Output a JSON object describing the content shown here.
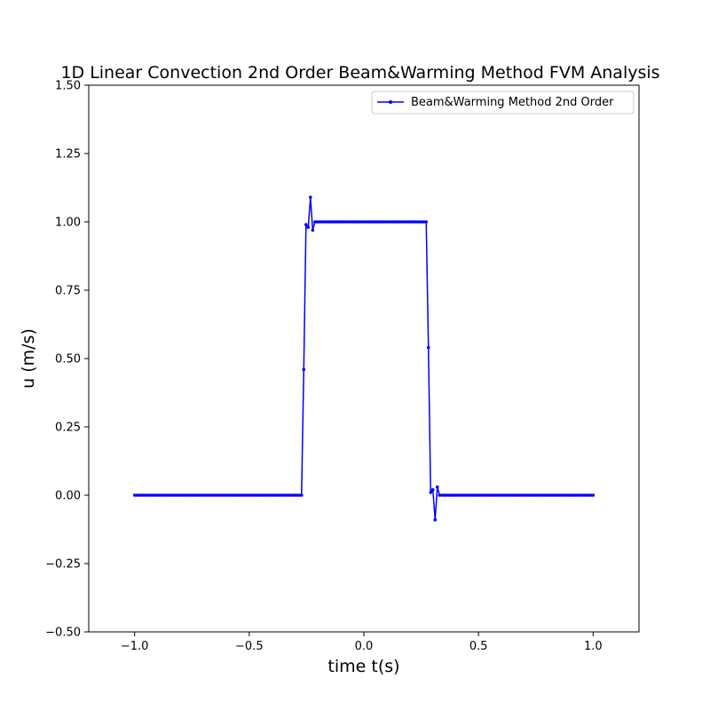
{
  "chart_data": {
    "type": "line",
    "title": "1D Linear Convection 2nd Order Beam&Warming Method FVM Analysis",
    "xlabel": "time t(s)",
    "ylabel": "u (m/s)",
    "xlim": [
      -1.2,
      1.2
    ],
    "ylim": [
      -0.5,
      1.5
    ],
    "x_ticks": [
      -1.0,
      -0.5,
      0.0,
      0.5,
      1.0
    ],
    "x_tick_labels": [
      "−1.0",
      "−0.5",
      "0.0",
      "0.5",
      "1.0"
    ],
    "y_ticks": [
      -0.5,
      -0.25,
      0.0,
      0.25,
      0.5,
      0.75,
      1.0,
      1.25,
      1.5
    ],
    "y_tick_labels": [
      "−0.50",
      "−0.25",
      "0.00",
      "0.25",
      "0.50",
      "0.75",
      "1.00",
      "1.25",
      "1.50"
    ],
    "grid": false,
    "legend_position": "top-right",
    "series": [
      {
        "name": "Beam&Warming Method 2nd Order",
        "color": "#0000ff",
        "x_start": -1.0,
        "x_end": 1.0,
        "n_points": 201,
        "values": [
          0,
          0,
          0,
          0,
          0,
          0,
          0,
          0,
          0,
          0,
          0,
          0,
          0,
          0,
          0,
          0,
          0,
          0,
          0,
          0,
          0,
          0,
          0,
          0,
          0,
          0,
          0,
          0,
          0,
          0,
          0,
          0,
          0,
          0,
          0,
          0,
          0,
          0,
          0,
          0,
          0,
          0,
          0,
          0,
          0,
          0,
          0,
          0,
          0,
          0,
          0,
          0,
          0,
          0,
          0,
          0,
          0,
          0,
          0,
          0,
          0,
          0,
          0,
          0,
          0,
          0,
          0,
          0,
          0,
          0,
          0,
          0,
          0,
          0,
          0,
          0,
          0.46,
          0.99,
          0.98,
          1.09,
          0.97,
          1.0,
          1.0,
          1.0,
          1.0,
          1.0,
          1.0,
          1.0,
          1.0,
          1.0,
          1.0,
          1.0,
          1.0,
          1.0,
          1.0,
          1.0,
          1.0,
          1.0,
          1.0,
          1.0,
          1.0,
          1.0,
          1.0,
          1.0,
          1.0,
          1.0,
          1.0,
          1.0,
          1.0,
          1.0,
          1.0,
          1.0,
          1.0,
          1.0,
          1.0,
          1.0,
          1.0,
          1.0,
          1.0,
          1.0,
          1.0,
          1.0,
          1.0,
          1.0,
          1.0,
          1.0,
          1.0,
          1.0,
          1.0,
          1.0,
          1.0,
          1.0,
          0.54,
          0.01,
          0.02,
          -0.09,
          0.03,
          0,
          0,
          0,
          0,
          0,
          0,
          0,
          0,
          0,
          0,
          0,
          0,
          0,
          0,
          0,
          0,
          0,
          0,
          0,
          0,
          0,
          0,
          0,
          0,
          0,
          0,
          0,
          0,
          0,
          0,
          0,
          0,
          0,
          0,
          0,
          0,
          0,
          0,
          0,
          0,
          0,
          0,
          0,
          0,
          0,
          0,
          0,
          0,
          0,
          0,
          0,
          0,
          0,
          0,
          0,
          0,
          0,
          0,
          0,
          0,
          0,
          0,
          0,
          0,
          0,
          0,
          0,
          0,
          0,
          0
        ]
      }
    ]
  }
}
